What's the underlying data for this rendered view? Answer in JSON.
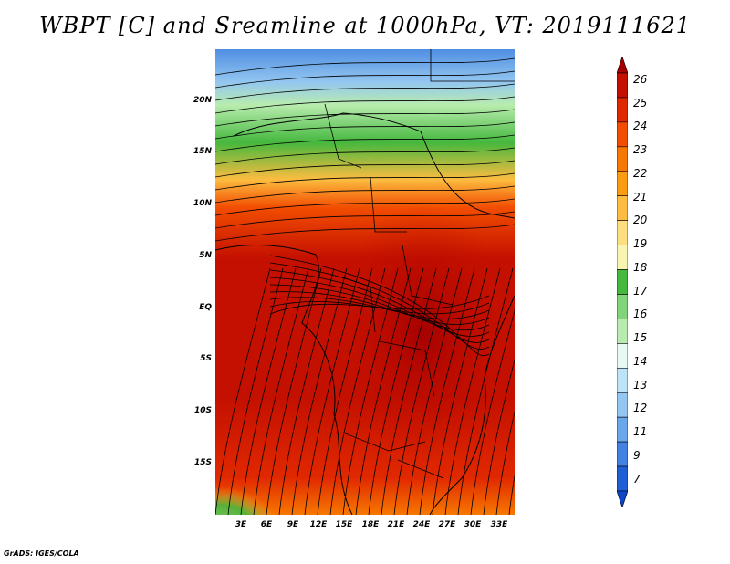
{
  "title": "WBPT [C] and Sreamline at 1000hPa, VT: 2019111621",
  "footer": "GrADS: IGES/COLA",
  "y_axis_labels": [
    "20N",
    "15N",
    "10N",
    "5N",
    "EQ",
    "5S",
    "10S",
    "15S"
  ],
  "x_axis_labels": [
    "3E",
    "6E",
    "9E",
    "12E",
    "15E",
    "18E",
    "21E",
    "24E",
    "27E",
    "30E",
    "33E"
  ],
  "colorbar": {
    "labels": [
      "26",
      "25",
      "24",
      "23",
      "22",
      "21",
      "20",
      "19",
      "18",
      "17",
      "16",
      "15",
      "14",
      "13",
      "12",
      "11",
      "9",
      "7"
    ],
    "colors": [
      "#a50000",
      "#c41000",
      "#e02800",
      "#f24d00",
      "#f77800",
      "#fa9b10",
      "#fcbc40",
      "#fddf80",
      "#f8f5b0",
      "#45b83e",
      "#82d47a",
      "#b8ecae",
      "#e6f9f2",
      "#bde3f7",
      "#93c6f0",
      "#6aa6ea",
      "#4382e0",
      "#1f5fd6",
      "#0d47c8"
    ]
  },
  "colors": {
    "background": "#ffffff",
    "map_warm": "#c41000",
    "map_cool": "#4382e0",
    "streamline": "#000000"
  }
}
